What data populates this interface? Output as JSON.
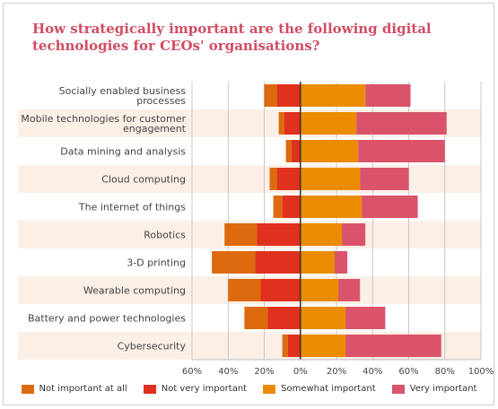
{
  "chart_data": {
    "type": "bar",
    "orientation": "horizontal-diverging-stacked",
    "title": "How strategically important are the following digital technologies for CEOs' organisations?",
    "categories": [
      "Socially enabled business processes",
      "Mobile technologies for customer engagement",
      "Data mining and analysis",
      "Cloud computing",
      "The internet of things",
      "Robotics",
      "3-D printing",
      "Wearable computing",
      "Battery and power technologies",
      "Cybersecurity"
    ],
    "category_lines": [
      [
        "Socially enabled business",
        "processes"
      ],
      [
        "Mobile technologies for customer",
        "engagement"
      ],
      [
        "Data mining and analysis"
      ],
      [
        "Cloud computing"
      ],
      [
        "The internet of things"
      ],
      [
        "Robotics"
      ],
      [
        "3-D printing"
      ],
      [
        "Wearable computing"
      ],
      [
        "Battery and power technologies"
      ],
      [
        "Cybersecurity"
      ]
    ],
    "series": [
      {
        "name": "Not important at all",
        "side": "negative",
        "color": "#dd6a0e",
        "values": [
          7,
          3,
          3,
          4,
          5,
          18,
          24,
          18,
          13,
          3
        ]
      },
      {
        "name": "Not very important",
        "side": "negative",
        "color": "#e0301e",
        "values": [
          13,
          9,
          5,
          13,
          10,
          24,
          25,
          22,
          18,
          7
        ]
      },
      {
        "name": "Somewhat important",
        "side": "positive",
        "color": "#eb8c00",
        "values": [
          36,
          31,
          32,
          33,
          34,
          23,
          19,
          21,
          25,
          25
        ]
      },
      {
        "name": "Very important",
        "side": "positive",
        "color": "#db536a",
        "values": [
          25,
          50,
          48,
          27,
          31,
          13,
          7,
          12,
          22,
          53
        ]
      }
    ],
    "xlim": [
      -60,
      100
    ],
    "xticks": [
      -60,
      -40,
      -20,
      0,
      20,
      40,
      60,
      80,
      100
    ],
    "xtick_labels": [
      "60%",
      "40%",
      "20%",
      "0%",
      "20%",
      "40%",
      "60%",
      "80%",
      "100%"
    ],
    "grid": true,
    "legend_position": "bottom"
  }
}
